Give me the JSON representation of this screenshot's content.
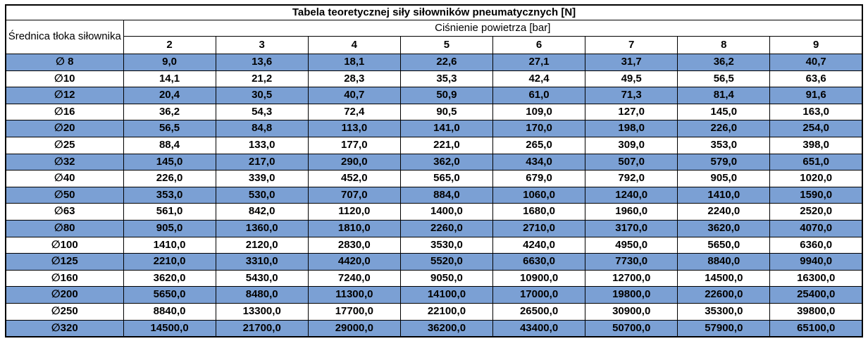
{
  "title": "Tabela teoretycznej siły siłowników pneumatycznych [N]",
  "table": {
    "diameter_header": "Średnica tłoka siłownika",
    "pressure_header": "Ciśnienie powietrza [bar]",
    "pressure_columns": [
      "2",
      "3",
      "4",
      "5",
      "6",
      "7",
      "8",
      "9"
    ],
    "rows": [
      {
        "diameter": "∅ 8",
        "highlight": true,
        "values": [
          "9,0",
          "13,6",
          "18,1",
          "22,6",
          "27,1",
          "31,7",
          "36,2",
          "40,7"
        ]
      },
      {
        "diameter": "∅10",
        "highlight": false,
        "values": [
          "14,1",
          "21,2",
          "28,3",
          "35,3",
          "42,4",
          "49,5",
          "56,5",
          "63,6"
        ]
      },
      {
        "diameter": "∅12",
        "highlight": true,
        "values": [
          "20,4",
          "30,5",
          "40,7",
          "50,9",
          "61,0",
          "71,3",
          "81,4",
          "91,6"
        ]
      },
      {
        "diameter": "∅16",
        "highlight": false,
        "values": [
          "36,2",
          "54,3",
          "72,4",
          "90,5",
          "109,0",
          "127,0",
          "145,0",
          "163,0"
        ]
      },
      {
        "diameter": "∅20",
        "highlight": true,
        "values": [
          "56,5",
          "84,8",
          "113,0",
          "141,0",
          "170,0",
          "198,0",
          "226,0",
          "254,0"
        ]
      },
      {
        "diameter": "∅25",
        "highlight": false,
        "values": [
          "88,4",
          "133,0",
          "177,0",
          "221,0",
          "265,0",
          "309,0",
          "353,0",
          "398,0"
        ]
      },
      {
        "diameter": "∅32",
        "highlight": true,
        "values": [
          "145,0",
          "217,0",
          "290,0",
          "362,0",
          "434,0",
          "507,0",
          "579,0",
          "651,0"
        ]
      },
      {
        "diameter": "∅40",
        "highlight": false,
        "values": [
          "226,0",
          "339,0",
          "452,0",
          "565,0",
          "679,0",
          "792,0",
          "905,0",
          "1020,0"
        ]
      },
      {
        "diameter": "∅50",
        "highlight": true,
        "values": [
          "353,0",
          "530,0",
          "707,0",
          "884,0",
          "1060,0",
          "1240,0",
          "1410,0",
          "1590,0"
        ]
      },
      {
        "diameter": "∅63",
        "highlight": false,
        "values": [
          "561,0",
          "842,0",
          "1120,0",
          "1400,0",
          "1680,0",
          "1960,0",
          "2240,0",
          "2520,0"
        ]
      },
      {
        "diameter": "∅80",
        "highlight": true,
        "values": [
          "905,0",
          "1360,0",
          "1810,0",
          "2260,0",
          "2710,0",
          "3170,0",
          "3620,0",
          "4070,0"
        ]
      },
      {
        "diameter": "∅100",
        "highlight": false,
        "values": [
          "1410,0",
          "2120,0",
          "2830,0",
          "3530,0",
          "4240,0",
          "4950,0",
          "5650,0",
          "6360,0"
        ]
      },
      {
        "diameter": "∅125",
        "highlight": true,
        "values": [
          "2210,0",
          "3310,0",
          "4420,0",
          "5520,0",
          "6630,0",
          "7730,0",
          "8840,0",
          "9940,0"
        ]
      },
      {
        "diameter": "∅160",
        "highlight": false,
        "values": [
          "3620,0",
          "5430,0",
          "7240,0",
          "9050,0",
          "10900,0",
          "12700,0",
          "14500,0",
          "16300,0"
        ]
      },
      {
        "diameter": "∅200",
        "highlight": true,
        "values": [
          "5650,0",
          "8480,0",
          "11300,0",
          "14100,0",
          "17000,0",
          "19800,0",
          "22600,0",
          "25400,0"
        ]
      },
      {
        "diameter": "∅250",
        "highlight": false,
        "values": [
          "8840,0",
          "13300,0",
          "17700,0",
          "22100,0",
          "26500,0",
          "30900,0",
          "35300,0",
          "39800,0"
        ]
      },
      {
        "diameter": "∅320",
        "highlight": true,
        "values": [
          "14500,0",
          "21700,0",
          "29000,0",
          "36200,0",
          "43400,0",
          "50700,0",
          "57900,0",
          "65100,0"
        ]
      }
    ]
  },
  "colors": {
    "highlight_row": "#7BA0D4",
    "border": "#000000",
    "text": "#000000",
    "background": "#ffffff"
  }
}
